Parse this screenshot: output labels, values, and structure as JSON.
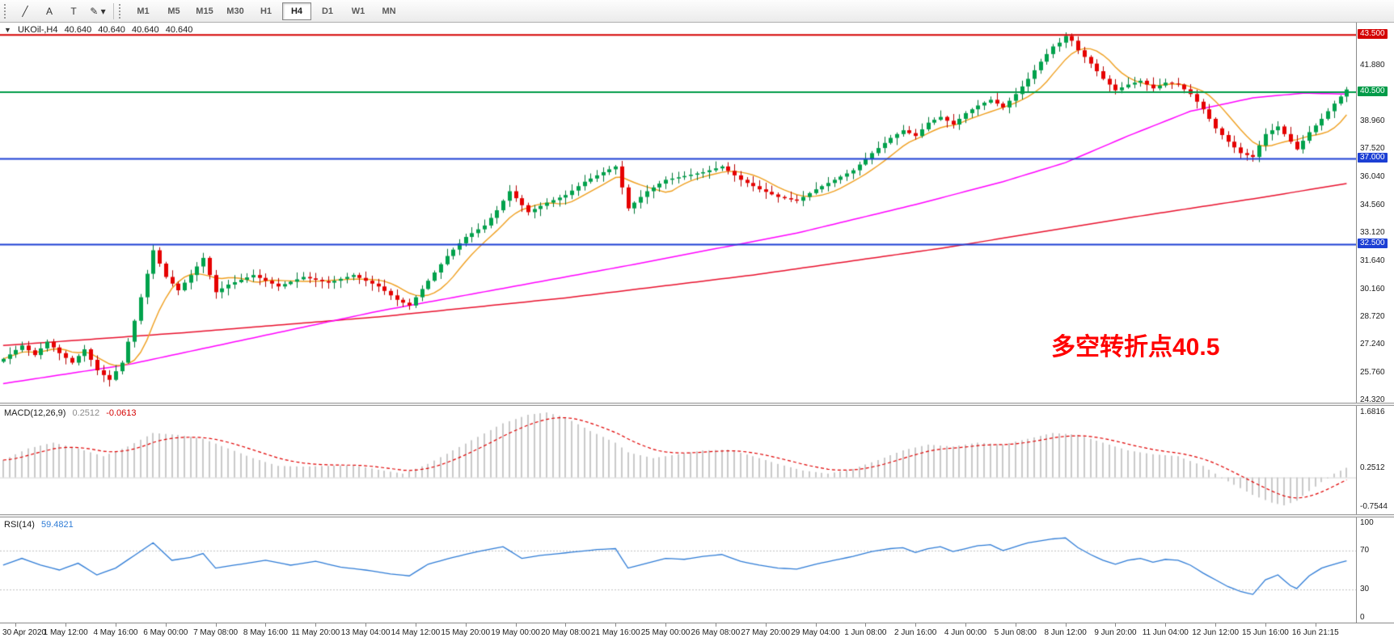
{
  "toolbar": {
    "tools": [
      {
        "name": "line-tool",
        "glyph": "╱",
        "has_dropdown": false
      },
      {
        "name": "text-label-tool",
        "glyph": "A",
        "has_dropdown": false
      },
      {
        "name": "text-box-tool",
        "glyph": "T",
        "has_dropdown": false
      },
      {
        "name": "draw-tool",
        "glyph": "✎",
        "has_dropdown": true
      }
    ],
    "timeframes": [
      "M1",
      "M5",
      "M15",
      "M30",
      "H1",
      "H4",
      "D1",
      "W1",
      "MN"
    ],
    "active_timeframe": "H4"
  },
  "quote": {
    "arrow": "▼",
    "symbol": "UKOil-,H4",
    "open": "40.640",
    "high": "40.640",
    "low": "40.640",
    "close": "40.640"
  },
  "annotation": {
    "text": "多空转折点40.5",
    "color": "#FF0000"
  },
  "chart_data": [
    {
      "id": "main",
      "type": "candlestick",
      "symbol": "UKOil-",
      "timeframe": "H4",
      "n_bars": 216,
      "seed": 7,
      "y_range": [
        24.2,
        44.15
      ],
      "up_color": "#00A24C",
      "up_wick": "#007636",
      "down_color": "#E60000",
      "down_wick": "#B40000",
      "y_ticks": [
        "41.880",
        "38.960",
        "37.520",
        "36.040",
        "34.560",
        "33.120",
        "31.640",
        "30.160",
        "28.720",
        "27.240",
        "25.760",
        "24.320"
      ],
      "hlines": [
        {
          "label": "43.500",
          "value": 43.5,
          "color": "#D40000",
          "width": 2
        },
        {
          "label": "40.500",
          "value": 40.5,
          "color": "#009B48",
          "width": 2
        },
        {
          "label": "37.000",
          "value": 37.0,
          "color": "#1C3FD4",
          "width": 2
        },
        {
          "label": "32.500",
          "value": 32.5,
          "color": "#1C3FD4",
          "width": 2
        }
      ],
      "close_keypoints": [
        [
          0,
          26.5
        ],
        [
          3,
          27.2
        ],
        [
          5,
          26.7
        ],
        [
          7,
          27.4
        ],
        [
          9,
          26.8
        ],
        [
          11,
          26.3
        ],
        [
          13,
          27.0
        ],
        [
          15,
          25.9
        ],
        [
          17,
          25.4
        ],
        [
          19,
          26.3
        ],
        [
          21,
          28.5
        ],
        [
          24,
          32.2
        ],
        [
          26,
          30.8
        ],
        [
          28,
          30.1
        ],
        [
          30,
          30.9
        ],
        [
          32,
          31.8
        ],
        [
          34,
          30.0
        ],
        [
          36,
          30.4
        ],
        [
          40,
          30.9
        ],
        [
          44,
          30.3
        ],
        [
          48,
          30.8
        ],
        [
          52,
          30.5
        ],
        [
          56,
          30.9
        ],
        [
          60,
          30.3
        ],
        [
          63,
          29.6
        ],
        [
          65,
          29.3
        ],
        [
          68,
          30.6
        ],
        [
          71,
          31.9
        ],
        [
          74,
          32.9
        ],
        [
          77,
          33.5
        ],
        [
          79,
          34.3
        ],
        [
          81,
          35.3
        ],
        [
          84,
          34.2
        ],
        [
          87,
          34.7
        ],
        [
          90,
          35.1
        ],
        [
          93,
          35.8
        ],
        [
          96,
          36.3
        ],
        [
          98,
          36.6
        ],
        [
          100,
          34.4
        ],
        [
          103,
          35.3
        ],
        [
          106,
          35.9
        ],
        [
          109,
          36.1
        ],
        [
          112,
          36.3
        ],
        [
          115,
          36.6
        ],
        [
          118,
          35.9
        ],
        [
          121,
          35.4
        ],
        [
          124,
          35.0
        ],
        [
          127,
          34.8
        ],
        [
          130,
          35.4
        ],
        [
          133,
          35.9
        ],
        [
          136,
          36.4
        ],
        [
          139,
          37.3
        ],
        [
          142,
          38.1
        ],
        [
          144,
          38.5
        ],
        [
          146,
          38.2
        ],
        [
          148,
          38.9
        ],
        [
          150,
          39.2
        ],
        [
          152,
          38.8
        ],
        [
          154,
          39.4
        ],
        [
          156,
          39.8
        ],
        [
          158,
          40.1
        ],
        [
          160,
          39.7
        ],
        [
          162,
          40.4
        ],
        [
          164,
          41.2
        ],
        [
          166,
          42.1
        ],
        [
          168,
          42.9
        ],
        [
          169,
          43.1
        ],
        [
          170,
          43.45
        ],
        [
          171,
          43.2
        ],
        [
          172,
          42.7
        ],
        [
          174,
          42.0
        ],
        [
          176,
          41.2
        ],
        [
          178,
          40.6
        ],
        [
          180,
          40.9
        ],
        [
          182,
          41.1
        ],
        [
          184,
          40.7
        ],
        [
          186,
          41.0
        ],
        [
          188,
          40.9
        ],
        [
          190,
          40.4
        ],
        [
          192,
          39.6
        ],
        [
          194,
          38.6
        ],
        [
          196,
          37.9
        ],
        [
          198,
          37.3
        ],
        [
          200,
          37.1
        ],
        [
          202,
          38.3
        ],
        [
          204,
          38.7
        ],
        [
          206,
          37.9
        ],
        [
          207,
          37.5
        ],
        [
          209,
          38.4
        ],
        [
          211,
          39.1
        ],
        [
          213,
          39.9
        ],
        [
          215,
          40.64
        ]
      ],
      "moving_averages": [
        {
          "name": "ma-slow",
          "color": "#E8112D",
          "width": 1.5,
          "type": "keypoints",
          "keypoints": [
            [
              0,
              27.2
            ],
            [
              30,
              27.9
            ],
            [
              60,
              28.7
            ],
            [
              90,
              29.7
            ],
            [
              120,
              30.9
            ],
            [
              150,
              32.3
            ],
            [
              180,
              33.9
            ],
            [
              200,
              34.9
            ],
            [
              215,
              35.7
            ]
          ]
        },
        {
          "name": "ma-mid",
          "color": "#FF00FF",
          "width": 1.5,
          "type": "keypoints",
          "keypoints": [
            [
              0,
              25.2
            ],
            [
              20,
              26.2
            ],
            [
              40,
              27.6
            ],
            [
              60,
              29.0
            ],
            [
              80,
              30.2
            ],
            [
              100,
              31.4
            ],
            [
              127,
              33.1
            ],
            [
              146,
              34.6
            ],
            [
              160,
              35.8
            ],
            [
              170,
              36.8
            ],
            [
              180,
              38.2
            ],
            [
              190,
              39.5
            ],
            [
              200,
              40.2
            ],
            [
              208,
              40.45
            ],
            [
              215,
              40.4
            ]
          ]
        },
        {
          "name": "ma-fast",
          "color": "#EF9F1F",
          "width": 1.4,
          "type": "sma",
          "period": 8
        }
      ],
      "x_labels": [
        "30 Apr 2020",
        "1 May 12:00",
        "4 May 16:00",
        "6 May 00:00",
        "7 May 08:00",
        "8 May 16:00",
        "11 May 20:00",
        "13 May 04:00",
        "14 May 12:00",
        "15 May 20:00",
        "19 May 00:00",
        "20 May 08:00",
        "21 May 16:00",
        "25 May 00:00",
        "26 May 08:00",
        "27 May 20:00",
        "29 May 04:00",
        "1 Jun 08:00",
        "2 Jun 16:00",
        "4 Jun 00:00",
        "5 Jun 08:00",
        "8 Jun 12:00",
        "9 Jun 20:00",
        "11 Jun 04:00",
        "12 Jun 12:00",
        "15 Jun 16:00",
        "16 Jun 21:15"
      ],
      "x_label_start": 2,
      "x_label_step": 8
    },
    {
      "id": "macd",
      "type": "bar",
      "title": "MACD(12,26,9)",
      "value_main": "0.2512",
      "value_signal": "-0.0613",
      "y_range": [
        -0.95,
        1.85
      ],
      "hist_color": "#C9C9C9",
      "signal_color": "#E00000",
      "signal_period": 9,
      "zero_line_color": "#D8D8D8",
      "keypoints": [
        [
          0,
          0.45
        ],
        [
          4,
          0.75
        ],
        [
          8,
          0.9
        ],
        [
          12,
          0.75
        ],
        [
          16,
          0.55
        ],
        [
          20,
          0.8
        ],
        [
          24,
          1.15
        ],
        [
          28,
          1.1
        ],
        [
          32,
          1.0
        ],
        [
          36,
          0.75
        ],
        [
          40,
          0.5
        ],
        [
          44,
          0.3
        ],
        [
          48,
          0.28
        ],
        [
          52,
          0.3
        ],
        [
          56,
          0.32
        ],
        [
          60,
          0.2
        ],
        [
          64,
          0.1
        ],
        [
          68,
          0.35
        ],
        [
          72,
          0.7
        ],
        [
          76,
          1.05
        ],
        [
          80,
          1.4
        ],
        [
          84,
          1.62
        ],
        [
          87,
          1.68
        ],
        [
          90,
          1.55
        ],
        [
          94,
          1.2
        ],
        [
          98,
          0.9
        ],
        [
          100,
          0.65
        ],
        [
          104,
          0.5
        ],
        [
          108,
          0.6
        ],
        [
          112,
          0.7
        ],
        [
          116,
          0.72
        ],
        [
          120,
          0.55
        ],
        [
          124,
          0.35
        ],
        [
          128,
          0.18
        ],
        [
          132,
          0.1
        ],
        [
          136,
          0.22
        ],
        [
          140,
          0.45
        ],
        [
          144,
          0.7
        ],
        [
          148,
          0.85
        ],
        [
          152,
          0.8
        ],
        [
          156,
          0.9
        ],
        [
          160,
          0.85
        ],
        [
          164,
          1.0
        ],
        [
          168,
          1.15
        ],
        [
          172,
          1.1
        ],
        [
          176,
          0.9
        ],
        [
          180,
          0.7
        ],
        [
          184,
          0.6
        ],
        [
          188,
          0.55
        ],
        [
          192,
          0.3
        ],
        [
          196,
          -0.1
        ],
        [
          200,
          -0.45
        ],
        [
          203,
          -0.65
        ],
        [
          205,
          -0.72
        ],
        [
          207,
          -0.6
        ],
        [
          209,
          -0.35
        ],
        [
          211,
          -0.12
        ],
        [
          213,
          0.1
        ],
        [
          215,
          0.2512
        ]
      ],
      "axis_labels": [
        {
          "text": "1.6816",
          "value": 1.6816
        },
        {
          "text": "0.2512",
          "value": 0.2512
        },
        {
          "text": "-0.7544",
          "value": -0.7544
        }
      ]
    },
    {
      "id": "rsi",
      "type": "line",
      "title": "RSI(14)",
      "value": "59.4821",
      "y_range": [
        -4,
        104
      ],
      "line_color": "#2F7CD6",
      "level_color": "#C0C0C0",
      "levels": [
        70,
        30
      ],
      "keypoints": [
        [
          0,
          55
        ],
        [
          3,
          62
        ],
        [
          6,
          55
        ],
        [
          9,
          50
        ],
        [
          12,
          57
        ],
        [
          15,
          45
        ],
        [
          18,
          52
        ],
        [
          21,
          65
        ],
        [
          24,
          78
        ],
        [
          27,
          60
        ],
        [
          30,
          63
        ],
        [
          32,
          67
        ],
        [
          34,
          52
        ],
        [
          38,
          56
        ],
        [
          42,
          60
        ],
        [
          46,
          55
        ],
        [
          50,
          59
        ],
        [
          54,
          53
        ],
        [
          58,
          50
        ],
        [
          62,
          46
        ],
        [
          65,
          44
        ],
        [
          68,
          56
        ],
        [
          72,
          63
        ],
        [
          76,
          69
        ],
        [
          80,
          74
        ],
        [
          83,
          62
        ],
        [
          86,
          65
        ],
        [
          89,
          67
        ],
        [
          92,
          69
        ],
        [
          95,
          71
        ],
        [
          98,
          72
        ],
        [
          100,
          52
        ],
        [
          103,
          57
        ],
        [
          106,
          62
        ],
        [
          109,
          61
        ],
        [
          112,
          64
        ],
        [
          115,
          66
        ],
        [
          118,
          59
        ],
        [
          121,
          55
        ],
        [
          124,
          52
        ],
        [
          127,
          51
        ],
        [
          130,
          56
        ],
        [
          133,
          60
        ],
        [
          136,
          64
        ],
        [
          139,
          69
        ],
        [
          142,
          72
        ],
        [
          144,
          73
        ],
        [
          146,
          68
        ],
        [
          148,
          72
        ],
        [
          150,
          74
        ],
        [
          152,
          69
        ],
        [
          154,
          72
        ],
        [
          156,
          75
        ],
        [
          158,
          76
        ],
        [
          160,
          70
        ],
        [
          162,
          74
        ],
        [
          164,
          78
        ],
        [
          166,
          80
        ],
        [
          168,
          82
        ],
        [
          170,
          83
        ],
        [
          172,
          73
        ],
        [
          174,
          66
        ],
        [
          176,
          60
        ],
        [
          178,
          56
        ],
        [
          180,
          60
        ],
        [
          182,
          62
        ],
        [
          184,
          58
        ],
        [
          186,
          61
        ],
        [
          188,
          60
        ],
        [
          190,
          55
        ],
        [
          192,
          47
        ],
        [
          194,
          40
        ],
        [
          196,
          33
        ],
        [
          198,
          28
        ],
        [
          200,
          25
        ],
        [
          202,
          40
        ],
        [
          204,
          45
        ],
        [
          206,
          34
        ],
        [
          207,
          31
        ],
        [
          209,
          44
        ],
        [
          211,
          52
        ],
        [
          213,
          56
        ],
        [
          215,
          59.48
        ]
      ],
      "axis_labels": [
        {
          "text": "100",
          "value": 100
        },
        {
          "text": "70",
          "value": 70
        },
        {
          "text": "30",
          "value": 30
        },
        {
          "text": "0",
          "value": 0
        }
      ]
    }
  ]
}
